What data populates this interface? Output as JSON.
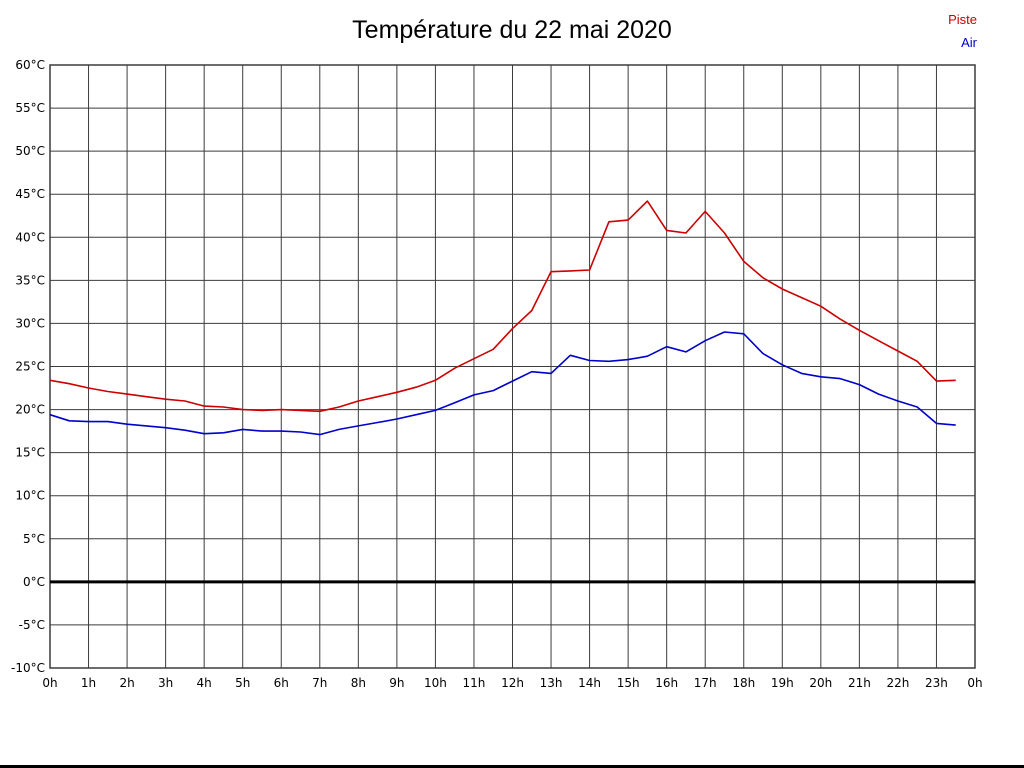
{
  "page": {
    "title": "Température du 22 mai 2020"
  },
  "legend": [
    {
      "label": "Piste",
      "color": "#cc0000"
    },
    {
      "label": "Air",
      "color": "#0000cc"
    }
  ],
  "chart_data": {
    "type": "line",
    "title": "Température du 22 mai 2020",
    "xlabel": "",
    "ylabel": "",
    "xlim": [
      0,
      24
    ],
    "ylim": [
      -10,
      60
    ],
    "x_start": 0,
    "x_step": 0.5,
    "x_unit": "h",
    "ytick_step": 5,
    "ytick_labels": [
      "60°C",
      "55°C",
      "50°C",
      "45°C",
      "40°C",
      "35°C",
      "30°C",
      "25°C",
      "20°C",
      "15°C",
      "10°C",
      "5°C",
      "0°C",
      "-5°C",
      "-10°C"
    ],
    "xtick_labels": [
      "0h",
      "1h",
      "2h",
      "3h",
      "4h",
      "5h",
      "6h",
      "7h",
      "8h",
      "9h",
      "10h",
      "11h",
      "12h",
      "13h",
      "14h",
      "15h",
      "16h",
      "17h",
      "18h",
      "19h",
      "20h",
      "21h",
      "22h",
      "23h",
      "0h"
    ],
    "grid": true,
    "grid_color": "#3c3c3c",
    "legend_position": "top-right",
    "zero_line": {
      "value": 0,
      "color": "#000000",
      "width": 3
    },
    "series": [
      {
        "name": "Piste",
        "color": "#cc0000",
        "values": [
          23.4,
          23.0,
          22.5,
          22.1,
          21.8,
          21.5,
          21.2,
          21.0,
          20.4,
          20.3,
          20.0,
          19.9,
          20.0,
          19.9,
          19.8,
          20.3,
          21.0,
          21.5,
          22.0,
          22.6,
          23.4,
          24.8,
          25.9,
          27.0,
          29.4,
          31.5,
          36.0,
          36.1,
          36.2,
          41.8,
          42.0,
          44.2,
          40.8,
          40.5,
          43.0,
          40.5,
          37.2,
          35.3,
          34.0,
          33.0,
          32.0,
          30.5,
          29.2,
          28.0,
          26.8,
          25.6,
          23.3,
          23.4
        ]
      },
      {
        "name": "Air",
        "color": "#0000cc",
        "values": [
          19.4,
          18.7,
          18.6,
          18.6,
          18.3,
          18.1,
          17.9,
          17.6,
          17.2,
          17.3,
          17.7,
          17.5,
          17.5,
          17.4,
          17.1,
          17.7,
          18.1,
          18.5,
          18.9,
          19.4,
          19.9,
          20.8,
          21.7,
          22.2,
          23.3,
          24.4,
          24.2,
          26.3,
          25.7,
          25.6,
          25.8,
          26.2,
          27.3,
          26.7,
          28.0,
          29.0,
          28.8,
          26.5,
          25.2,
          24.2,
          23.8,
          23.6,
          22.9,
          21.8,
          21.0,
          20.3,
          18.4,
          18.2
        ]
      }
    ]
  }
}
